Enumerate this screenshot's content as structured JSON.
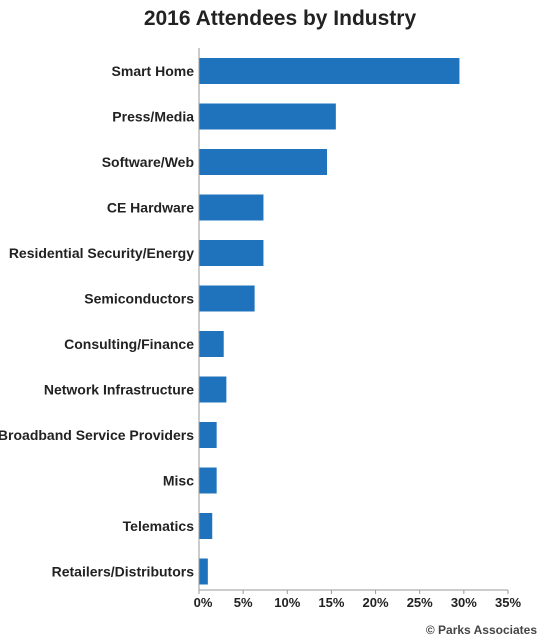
{
  "chart_data": {
    "type": "bar",
    "orientation": "horizontal",
    "title": "2016 Attendees by Industry",
    "categories": [
      "Smart Home",
      "Press/Media",
      "Software/Web",
      "CE Hardware",
      "Residential Security/Energy",
      "Semiconductors",
      "Consulting/Finance",
      "Network Infrastructure",
      "Broadband Service Providers",
      "Misc",
      "Telematics",
      "Retailers/Distributors"
    ],
    "values": [
      29.5,
      15.5,
      14.5,
      7.3,
      7.3,
      6.3,
      2.8,
      3.1,
      2.0,
      2.0,
      1.5,
      1.0
    ],
    "xlim": [
      0,
      35
    ],
    "xticks": [
      0,
      5,
      10,
      15,
      20,
      25,
      30,
      35
    ],
    "xtick_labels": [
      "0%",
      "5%",
      "10%",
      "15%",
      "20%",
      "25%",
      "30%",
      "35%"
    ],
    "bar_color": "#1f73bd",
    "grid": false,
    "legend": "none"
  },
  "credit": "© Parks Associates"
}
